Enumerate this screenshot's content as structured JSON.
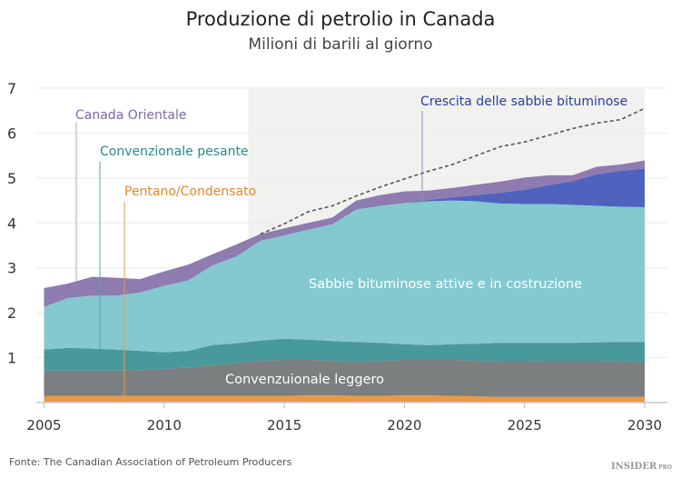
{
  "chart_data": {
    "type": "area",
    "stacked": true,
    "title": "Produzione di petrolio in Canada",
    "subtitle": "Milioni di barili al giorno",
    "xlabel": "",
    "ylabel": "",
    "xlim": [
      2005,
      2030
    ],
    "ylim": [
      0,
      7
    ],
    "x_ticks": [
      "2005",
      "2010",
      "2015",
      "2020",
      "2025",
      "2030"
    ],
    "y_ticks": [
      "1",
      "2",
      "3",
      "4",
      "5",
      "6",
      "7"
    ],
    "grid": true,
    "forecast_shading_from": 2013.5,
    "x": [
      2005,
      2006,
      2007,
      2008,
      2009,
      2010,
      2011,
      2012,
      2013,
      2014,
      2015,
      2016,
      2017,
      2018,
      2019,
      2020,
      2021,
      2022,
      2023,
      2024,
      2025,
      2026,
      2027,
      2028,
      2029,
      2030
    ],
    "series": [
      {
        "name": "Pentano/Condensato",
        "color": "#e8994a",
        "label_color": "#e0882e",
        "values": [
          0.15,
          0.15,
          0.15,
          0.15,
          0.15,
          0.15,
          0.15,
          0.15,
          0.15,
          0.15,
          0.15,
          0.16,
          0.16,
          0.15,
          0.15,
          0.16,
          0.16,
          0.15,
          0.14,
          0.13,
          0.13,
          0.13,
          0.13,
          0.13,
          0.13,
          0.13
        ]
      },
      {
        "name": "Convenzuionale leggero",
        "color": "#7b7f80",
        "label_color": "#ffffff",
        "values": [
          0.56,
          0.56,
          0.56,
          0.56,
          0.57,
          0.6,
          0.63,
          0.68,
          0.73,
          0.78,
          0.8,
          0.79,
          0.77,
          0.75,
          0.78,
          0.79,
          0.79,
          0.8,
          0.79,
          0.79,
          0.79,
          0.8,
          0.8,
          0.8,
          0.79,
          0.77
        ]
      },
      {
        "name": "Convenzionale pesante",
        "color": "#48999c",
        "label_color": "#2a8a8a",
        "values": [
          0.47,
          0.51,
          0.49,
          0.47,
          0.43,
          0.37,
          0.37,
          0.45,
          0.44,
          0.45,
          0.47,
          0.45,
          0.44,
          0.45,
          0.4,
          0.35,
          0.33,
          0.35,
          0.38,
          0.41,
          0.41,
          0.4,
          0.4,
          0.41,
          0.43,
          0.45
        ]
      },
      {
        "name": "Sabbie bituminose attive e in costruzione",
        "color": "#84c9d0",
        "label_color": "#ffffff",
        "values": [
          0.95,
          1.11,
          1.18,
          1.2,
          1.3,
          1.48,
          1.57,
          1.77,
          1.93,
          2.22,
          2.3,
          2.45,
          2.6,
          2.95,
          3.05,
          3.14,
          3.2,
          3.2,
          3.17,
          3.1,
          3.09,
          3.09,
          3.07,
          3.04,
          3.01,
          3.0
        ]
      },
      {
        "name": "Crescita delle sabbie bituminose",
        "color": "#4f63be",
        "label_color": "#2c3e9e",
        "values": [
          0,
          0,
          0,
          0,
          0,
          0,
          0,
          0,
          0,
          0,
          0,
          0,
          0,
          0,
          0,
          0,
          0.03,
          0.07,
          0.14,
          0.24,
          0.32,
          0.42,
          0.53,
          0.7,
          0.8,
          0.86
        ]
      },
      {
        "name": "Canada Orientale",
        "color": "#8e7bb0",
        "label_color": "#7a68a6",
        "values": [
          0.42,
          0.32,
          0.42,
          0.4,
          0.3,
          0.32,
          0.35,
          0.25,
          0.27,
          0.15,
          0.16,
          0.15,
          0.15,
          0.2,
          0.24,
          0.26,
          0.21,
          0.21,
          0.23,
          0.25,
          0.27,
          0.22,
          0.13,
          0.17,
          0.14,
          0.18
        ]
      }
    ],
    "dashed_line": {
      "color": "#555555",
      "x": [
        2014,
        2015,
        2016,
        2017,
        2018,
        2019,
        2020,
        2021,
        2022,
        2023,
        2024,
        2025,
        2026,
        2027,
        2028,
        2029,
        2030
      ],
      "values": [
        3.75,
        3.98,
        4.25,
        4.38,
        4.6,
        4.8,
        4.98,
        5.15,
        5.3,
        5.5,
        5.7,
        5.8,
        5.95,
        6.1,
        6.22,
        6.3,
        6.55
      ]
    }
  },
  "source": "Fonte: The Canadian Association of Petroleum Producers",
  "logo": "INSIDER PRO"
}
